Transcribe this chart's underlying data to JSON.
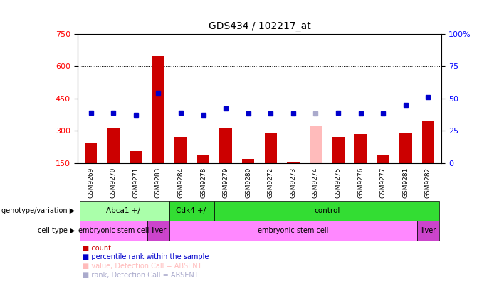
{
  "title": "GDS434 / 102217_at",
  "samples": [
    "GSM9269",
    "GSM9270",
    "GSM9271",
    "GSM9283",
    "GSM9284",
    "GSM9278",
    "GSM9279",
    "GSM9280",
    "GSM9272",
    "GSM9273",
    "GSM9274",
    "GSM9275",
    "GSM9276",
    "GSM9277",
    "GSM9281",
    "GSM9282"
  ],
  "bar_values": [
    240,
    315,
    205,
    645,
    270,
    185,
    315,
    170,
    290,
    155,
    320,
    270,
    285,
    185,
    290,
    345
  ],
  "rank_values": [
    39,
    39,
    37,
    54,
    39,
    37,
    42,
    38,
    38,
    38,
    null,
    39,
    38,
    38,
    45,
    51
  ],
  "absent_bar_idx": 10,
  "absent_bar_val": 320,
  "absent_rank_val": 38,
  "ylim_left": [
    150,
    750
  ],
  "ylim_right": [
    0,
    100
  ],
  "yticks_left": [
    150,
    300,
    450,
    600,
    750
  ],
  "yticks_right": [
    0,
    25,
    50,
    75,
    100
  ],
  "ytick_labels_right": [
    "0",
    "25",
    "50",
    "75",
    "100%"
  ],
  "bar_color": "#cc0000",
  "rank_color": "#0000cc",
  "absent_bar_color": "#ffbbbb",
  "absent_rank_color": "#aaaacc",
  "bg_color": "#ffffff",
  "geno_groups": [
    {
      "label": "Abca1 +/-",
      "start": 0,
      "end": 3,
      "color": "#aaffaa"
    },
    {
      "label": "Cdk4 +/-",
      "start": 4,
      "end": 5,
      "color": "#33dd33"
    },
    {
      "label": "control",
      "start": 6,
      "end": 15,
      "color": "#33dd33"
    }
  ],
  "cell_groups": [
    {
      "label": "embryonic stem cell",
      "start": 0,
      "end": 2,
      "color": "#ff88ff"
    },
    {
      "label": "liver",
      "start": 3,
      "end": 3,
      "color": "#cc44cc"
    },
    {
      "label": "embryonic stem cell",
      "start": 4,
      "end": 14,
      "color": "#ff88ff"
    },
    {
      "label": "liver",
      "start": 15,
      "end": 15,
      "color": "#cc44cc"
    }
  ],
  "legend_items": [
    {
      "label": "count",
      "color": "#cc0000"
    },
    {
      "label": "percentile rank within the sample",
      "color": "#0000cc"
    },
    {
      "label": "value, Detection Call = ABSENT",
      "color": "#ffbbbb"
    },
    {
      "label": "rank, Detection Call = ABSENT",
      "color": "#aaaacc"
    }
  ]
}
